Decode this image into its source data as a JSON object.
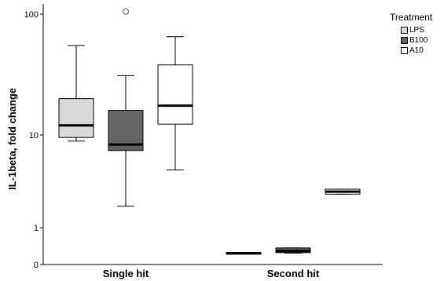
{
  "chart_data": {
    "type": "box",
    "ylabel": "IL-1beta, fold change",
    "xlabel": "",
    "y_scale": "log",
    "y_ticks": [
      {
        "value": 0,
        "label": "0"
      },
      {
        "value": 1,
        "label": "1"
      },
      {
        "value": 10,
        "label": "10"
      },
      {
        "value": 100,
        "label": "100"
      }
    ],
    "categories": [
      "Single hit",
      "Second hit"
    ],
    "legend": {
      "title": "Treatment",
      "placement": "top-right",
      "items": [
        {
          "name": "LPS",
          "color": "#d9d9d9"
        },
        {
          "name": "B100",
          "color": "#636363"
        },
        {
          "name": "A10",
          "color": "#ffffff"
        }
      ]
    },
    "series": [
      {
        "name": "LPS",
        "color": "#d9d9d9",
        "boxes": [
          {
            "category": "Single hit",
            "min": 8.6,
            "q1": 9.4,
            "median": 12.0,
            "q3": 20.0,
            "max": 55.0,
            "outliers": []
          },
          {
            "category": "Second hit",
            "min": 0.41,
            "q1": 0.41,
            "median": 0.41,
            "q3": 0.42,
            "max": 0.42,
            "outliers": []
          }
        ]
      },
      {
        "name": "B100",
        "color": "#636363",
        "boxes": [
          {
            "category": "Single hit",
            "min": 1.7,
            "q1": 6.8,
            "median": 7.9,
            "q3": 16.0,
            "max": 31.0,
            "outliers": [
              105
            ]
          },
          {
            "category": "Second hit",
            "min": 0.41,
            "q1": 0.42,
            "median": 0.46,
            "q3": 0.53,
            "max": 0.53,
            "outliers": []
          }
        ]
      },
      {
        "name": "A10",
        "color": "#ffffff",
        "boxes": [
          {
            "category": "Single hit",
            "min": 4.2,
            "q1": 12.3,
            "median": 17.5,
            "q3": 38.0,
            "max": 65.0,
            "outliers": []
          },
          {
            "category": "Second hit",
            "min": 2.3,
            "q1": 2.3,
            "median": 2.45,
            "q3": 2.6,
            "max": 2.6,
            "outliers": []
          }
        ]
      }
    ]
  }
}
